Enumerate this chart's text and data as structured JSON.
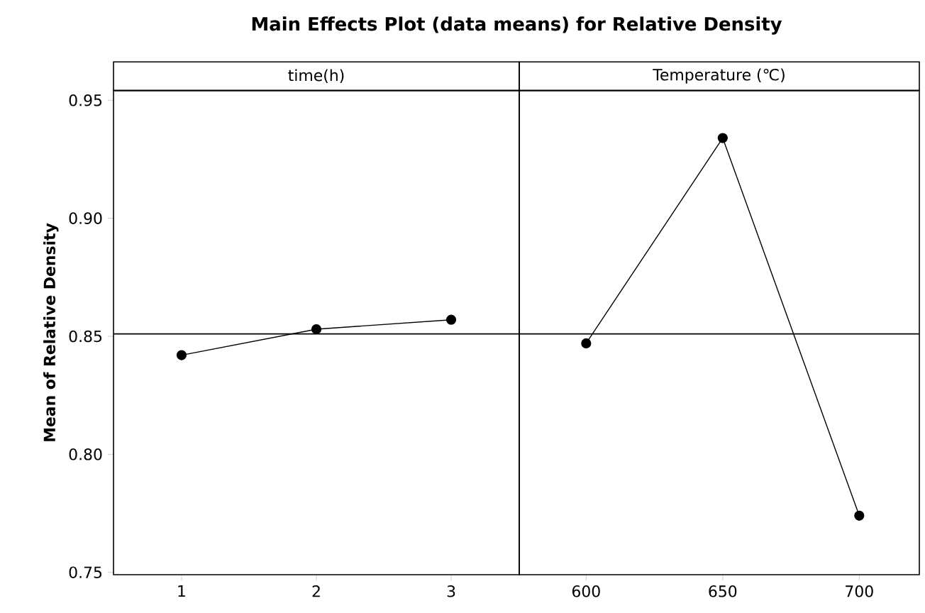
{
  "chart_data": [
    {
      "type": "line",
      "title": "Main Effects Plot (data means) for Relative Density",
      "subtitle": "time(h)",
      "ylabel": "Mean of Relative Density",
      "x": [
        1,
        2,
        3
      ],
      "values": [
        0.842,
        0.853,
        0.857
      ],
      "color": "#000000",
      "marker": "circle",
      "line_style": "solid",
      "xlim": [
        0.495,
        3.505
      ],
      "xticks": [
        1,
        2,
        3
      ],
      "ylim": [
        0.749,
        0.954
      ],
      "yticks": [
        0.75,
        {
          "value": 0.8,
          "label": "0.80"
        },
        0.85,
        {
          "value": 0.9,
          "label": "0.90"
        },
        0.95
      ],
      "ref_lines": [
        {
          "axis": "y",
          "value": 0.851,
          "color": "#000000"
        }
      ]
    },
    {
      "type": "line",
      "subtitle": "Temperature (℃)",
      "x": [
        600,
        650,
        700
      ],
      "values": [
        0.847,
        0.934,
        0.774
      ],
      "color": "#000000",
      "marker": "circle",
      "line_style": "solid",
      "xlim": [
        575.5,
        722
      ],
      "xticks": [
        600,
        650,
        700
      ],
      "ylim": [
        0.749,
        0.954
      ],
      "ref_lines": [
        {
          "axis": "y",
          "value": 0.851,
          "color": "#000000"
        }
      ],
      "tick_labels": "x"
    }
  ]
}
